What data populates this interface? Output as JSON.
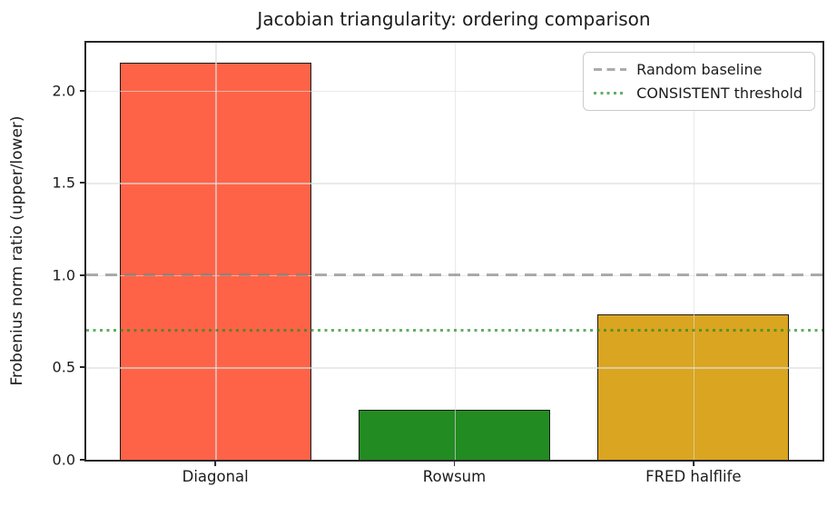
{
  "chart_data": {
    "type": "bar",
    "title": "Jacobian triangularity: ordering comparison",
    "xlabel": "",
    "ylabel": "Frobenius norm ratio (upper/lower)",
    "categories": [
      "Diagonal",
      "Rowsum",
      "FRED halflife"
    ],
    "values": [
      2.15,
      0.27,
      0.79
    ],
    "bar_colors": [
      "#ff6347",
      "#228b22",
      "#daa520"
    ],
    "bar_edge_color": "#1a1a1a",
    "ylim": [
      0,
      2.26
    ],
    "xlim": [
      -0.54,
      2.54
    ],
    "bar_width": 0.8,
    "yticks": [
      0.0,
      0.5,
      1.0,
      1.5,
      2.0
    ],
    "ytick_labels": [
      "0.0",
      "0.5",
      "1.0",
      "1.5",
      "2.0"
    ],
    "grid": true,
    "grid_color": "#dedede",
    "reference_lines": [
      {
        "label": "Random baseline",
        "value": 1.0,
        "style": "dashed",
        "color": "#808080a6"
      },
      {
        "label": "CONSISTENT threshold",
        "value": 0.7,
        "style": "dotted",
        "color": "#228b22b3"
      }
    ],
    "legend_position": "upper right"
  }
}
